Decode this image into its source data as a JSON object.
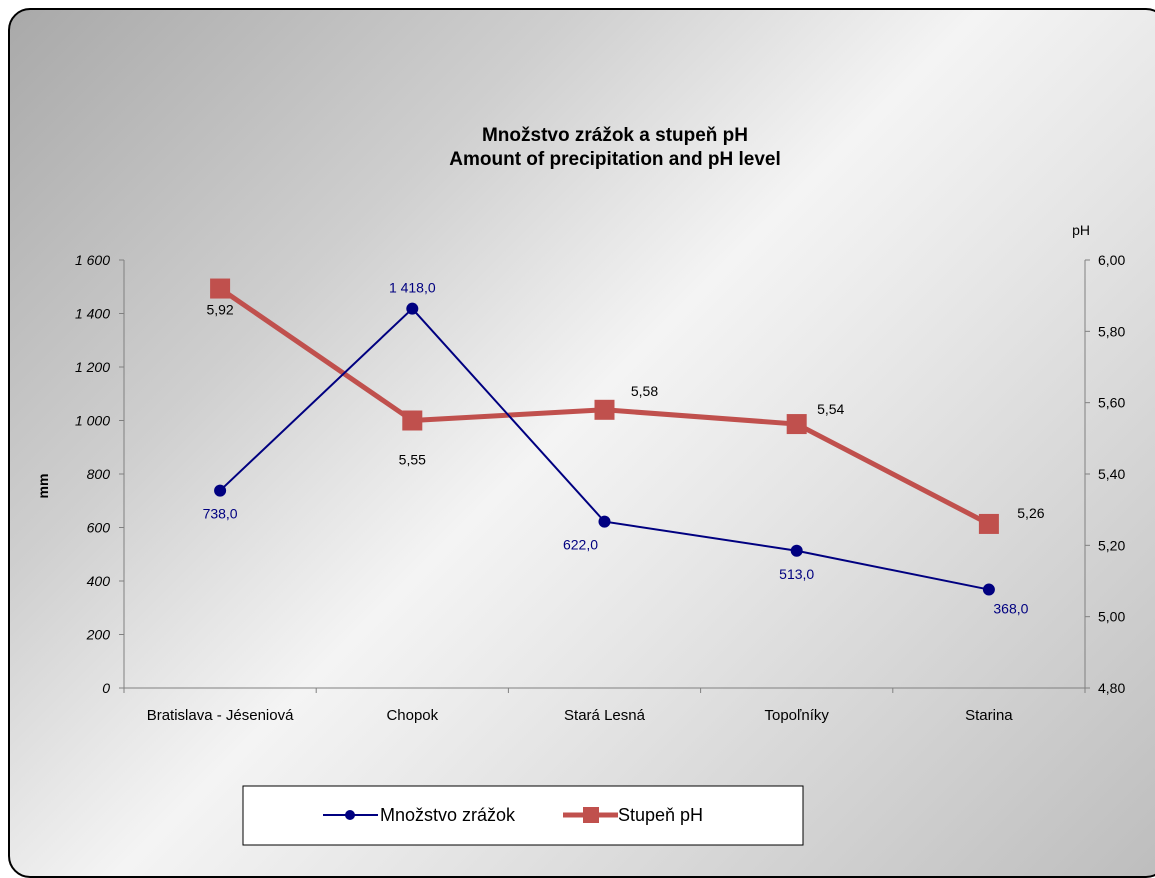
{
  "chart_data": {
    "type": "line",
    "title": "Množstvo zrážok a stupeň pH",
    "subtitle": "Amount of precipitation and pH level",
    "categories": [
      "Bratislava - Jéseniová",
      "Chopok",
      "Stará Lesná",
      "Topoľníky",
      "Starina"
    ],
    "y_left": {
      "label": "mm",
      "min": 0,
      "max": 1600,
      "ticks": [
        "0",
        "200",
        "400",
        "600",
        "800",
        "1 000",
        "1 200",
        "1 400",
        "1 600"
      ]
    },
    "y_right": {
      "label": "pH",
      "min": 4.8,
      "max": 6.0,
      "ticks": [
        "4,80",
        "5,00",
        "5,20",
        "5,40",
        "5,60",
        "5,80",
        "6,00"
      ]
    },
    "grid": false,
    "legend": "bottom",
    "series": [
      {
        "name": "Množstvo zrážok",
        "axis": "left",
        "values": [
          738,
          1418,
          622,
          513,
          368
        ],
        "labels": [
          "738,0",
          "1 418,0",
          "622,0",
          "513,0",
          "368,0"
        ],
        "color": "#000080",
        "marker": "circle"
      },
      {
        "name": "Stupeň pH",
        "axis": "right",
        "values": [
          5.92,
          5.55,
          5.58,
          5.54,
          5.26
        ],
        "labels": [
          "5,92",
          "5,55",
          "5,58",
          "5,54",
          "5,26"
        ],
        "color": "#c0504d",
        "marker": "square"
      }
    ]
  }
}
